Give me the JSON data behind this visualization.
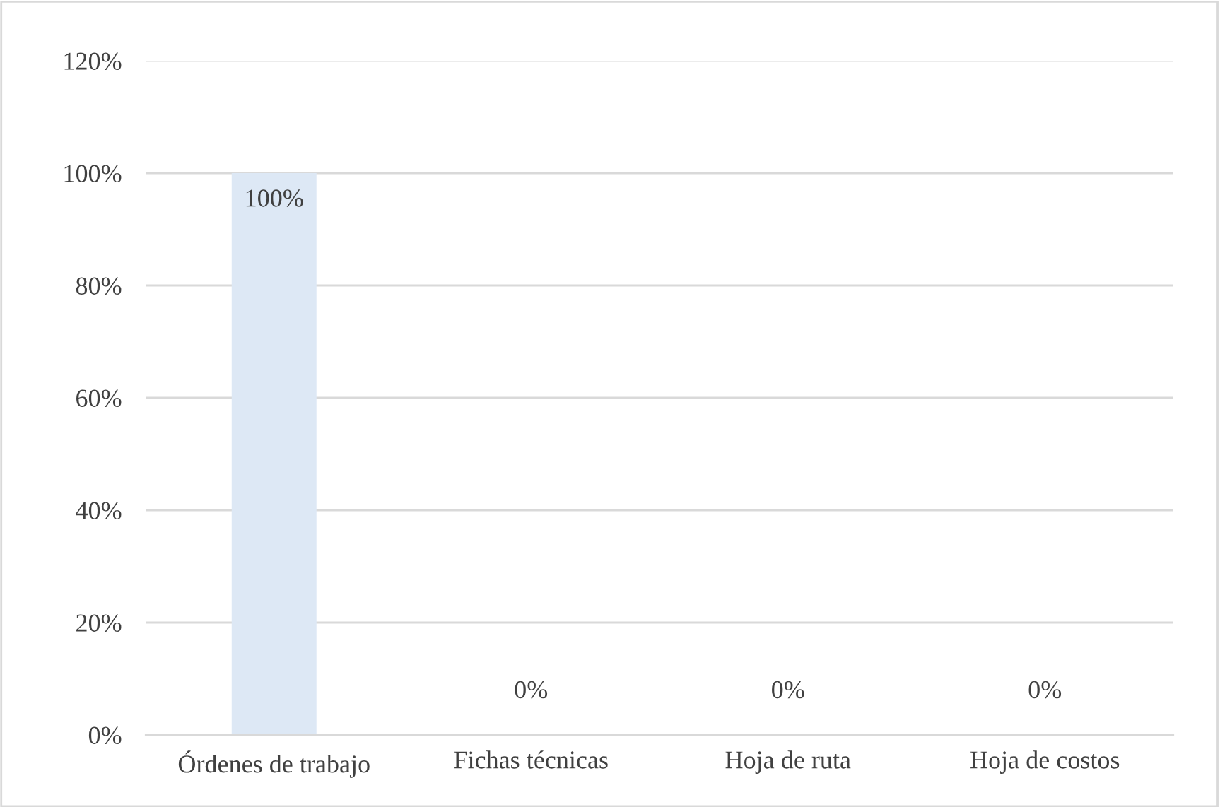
{
  "chart_data": {
    "type": "bar",
    "categories": [
      "Órdenes de trabajo",
      "Fichas técnicas",
      "Hoja de ruta",
      "Hoja de costos"
    ],
    "values": [
      100,
      0,
      0,
      0
    ],
    "color": "#dde8f5",
    "value_labels": [
      "100%",
      "0%",
      "0%",
      "0%"
    ],
    "ylim": [
      0,
      120
    ],
    "yticks": [
      {
        "value": 0,
        "label": "0%"
      },
      {
        "value": 20,
        "label": "20%"
      },
      {
        "value": 40,
        "label": "40%"
      },
      {
        "value": 60,
        "label": "60%"
      },
      {
        "value": 80,
        "label": "80%"
      },
      {
        "value": 100,
        "label": "100%"
      },
      {
        "value": 120,
        "label": "120%"
      }
    ],
    "grid": "y",
    "legend": false
  }
}
